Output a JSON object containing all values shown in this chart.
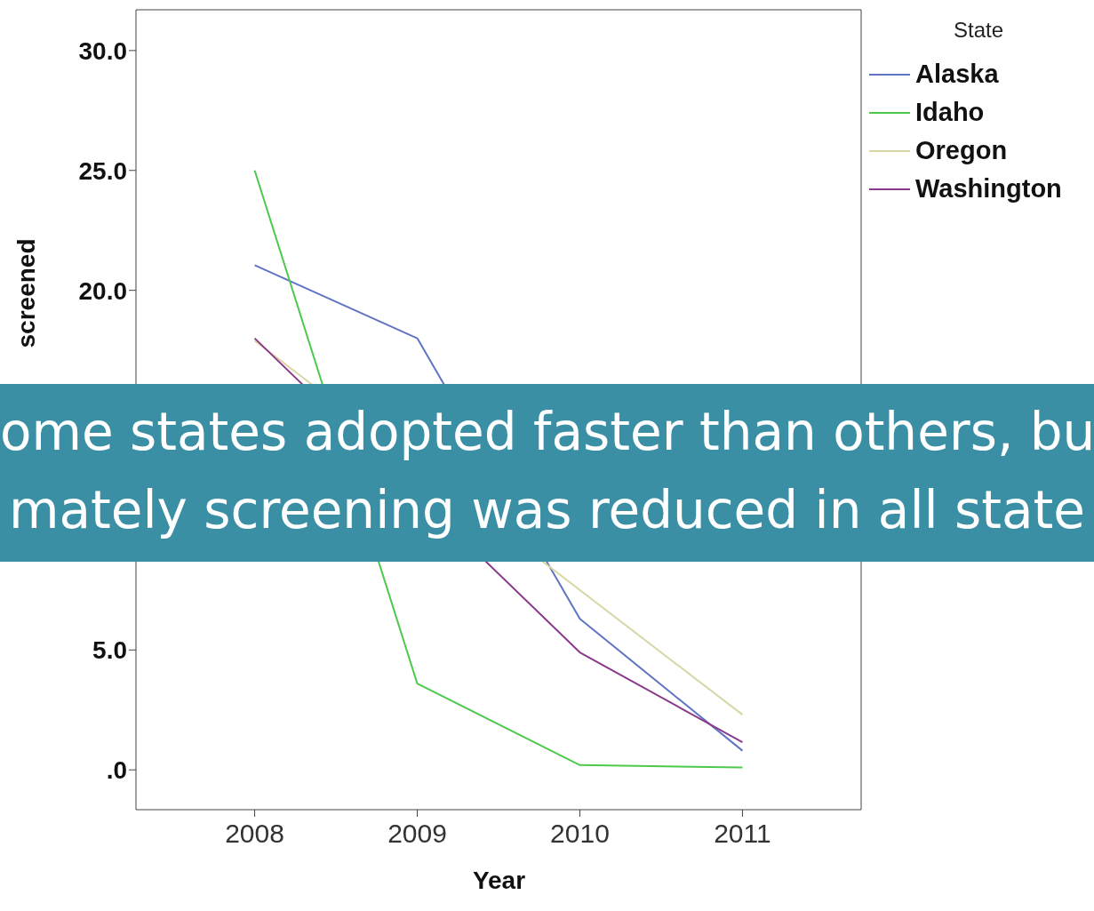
{
  "chart_data": {
    "type": "line",
    "xlabel": "Year",
    "ylabel": "screened",
    "legend_title": "State",
    "x": [
      2008,
      2009,
      2010,
      2011
    ],
    "xlim": [
      2007.27,
      2011.73
    ],
    "xticks": [
      2008,
      2009,
      2010,
      2011
    ],
    "ylim": [
      -1.66,
      31.7
    ],
    "yticks": [
      {
        "value": 0,
        "label": ".0"
      },
      {
        "value": 5,
        "label": "5.0"
      },
      {
        "value": 20,
        "label": "20.0"
      },
      {
        "value": 25,
        "label": "25.0"
      },
      {
        "value": 30,
        "label": "30.0"
      }
    ],
    "series": [
      {
        "name": "Alaska",
        "color": "#5f74c4",
        "values": [
          21.05,
          18.0,
          6.3,
          0.8
        ]
      },
      {
        "name": "Idaho",
        "color": "#4dc94d",
        "values": [
          25.0,
          3.6,
          0.2,
          0.1
        ]
      },
      {
        "name": "Oregon",
        "color": "#d9d6a6",
        "values": [
          17.9,
          null,
          null,
          2.3
        ]
      },
      {
        "name": "Washington",
        "color": "#8b3a8b",
        "values": [
          18.0,
          null,
          4.9,
          1.15
        ]
      }
    ],
    "legend": "top right",
    "marker": "none",
    "line_style": "solid",
    "annotations": [
      "ome states adopted faster than others, bu",
      "mately screening was reduced in all state"
    ]
  }
}
